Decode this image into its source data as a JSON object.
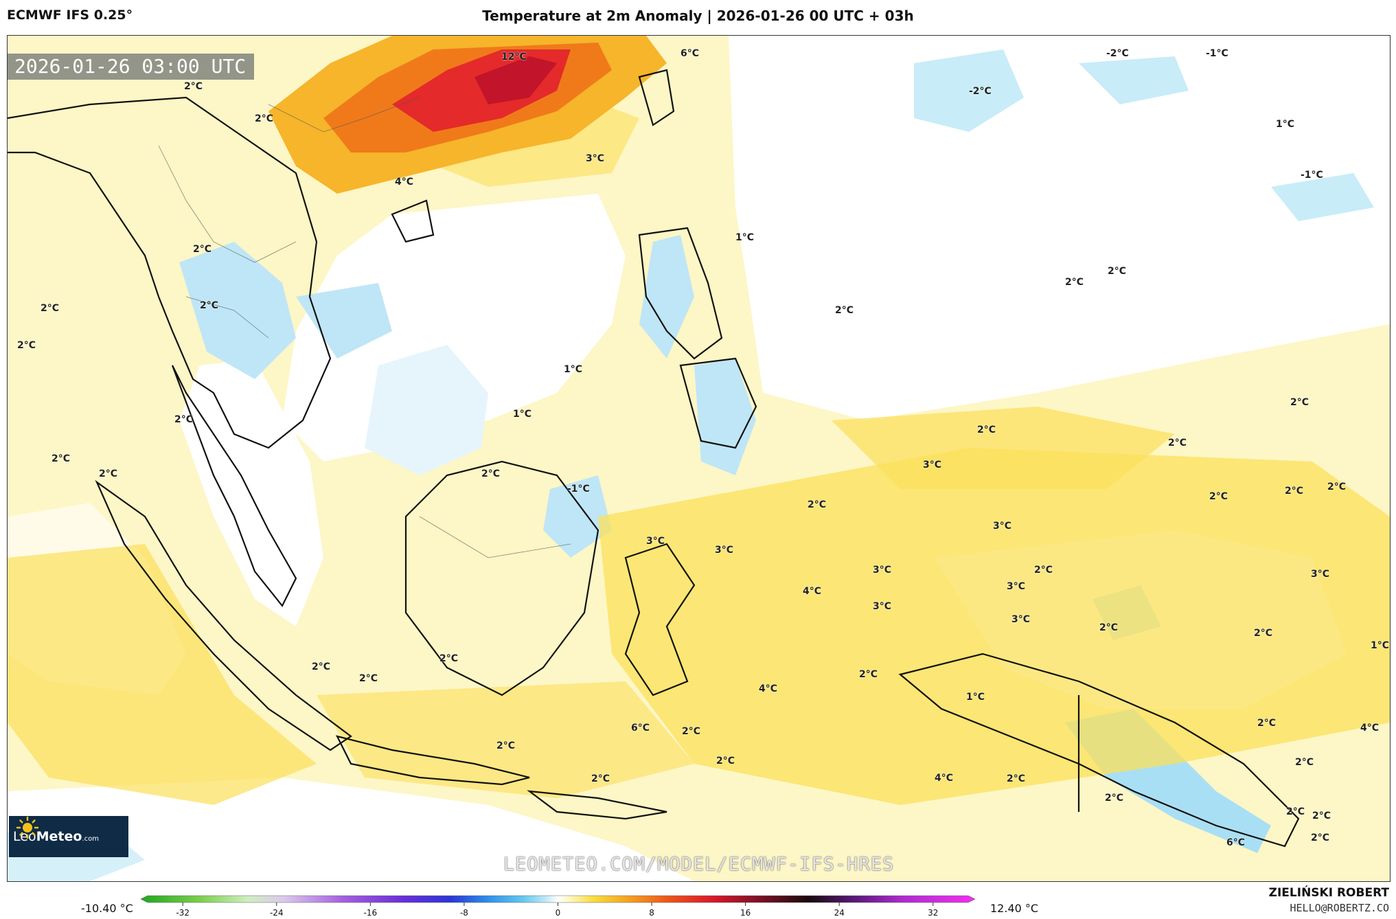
{
  "header": {
    "model": "ECMWF IFS 0.25°",
    "title": "Temperature at 2m Anomaly | 2026-01-26 00 UTC + 03h"
  },
  "map": {
    "timestamp": "2026-01-26 03:00 UTC",
    "watermark": "LEOMETEO.COM/MODEL/ECMWF-IFS-HRES",
    "labels": [
      "2°C",
      "12°C",
      "6°C",
      "-2°C",
      "-1°C",
      "-2°C",
      "1°C",
      "-1°C",
      "2°C",
      "3°C",
      "4°C",
      "1°C",
      "2°C",
      "2°C",
      "2°C",
      "2°C",
      "2°C",
      "2°C",
      "1°C",
      "1°C",
      "2°C",
      "2°C",
      "2°C",
      "2°C",
      "3°C",
      "2°C",
      "-1°C",
      "2°C",
      "3°C",
      "3°C",
      "2°C",
      "3°C",
      "3°C",
      "2°C",
      "3°C",
      "4°C",
      "3°C",
      "3°C",
      "2°C",
      "2°C",
      "2°C",
      "3°C",
      "2°C",
      "2°C",
      "2°C",
      "6°C",
      "1°C",
      "4°C",
      "2°C",
      "2°C",
      "2°C",
      "2°C",
      "2°C",
      "2°C",
      "2°C",
      "2°C",
      "2°C",
      "2°C",
      "4°C",
      "2°C",
      "2°C",
      "6°C",
      "2°C",
      "2°C",
      "2°C",
      "1°C",
      "4°C",
      "2°C"
    ]
  },
  "logo": {
    "brand_light": "Leo",
    "brand_bold": "Meteo",
    "brand_suffix": ".com"
  },
  "colorbar": {
    "min_label": "-10.40 °C",
    "max_label": "12.40 °C",
    "ticks": [
      "-32",
      "-24",
      "-16",
      "-8",
      "0",
      "8",
      "16",
      "24",
      "32"
    ],
    "tick_values": [
      -32,
      -24,
      -16,
      -8,
      0,
      8,
      16,
      24,
      32
    ],
    "range": [
      -35,
      35
    ],
    "stops": [
      {
        "v": -35,
        "c": "#1fa61f"
      },
      {
        "v": -30,
        "c": "#7ccf4d"
      },
      {
        "v": -26,
        "c": "#cfeec0"
      },
      {
        "v": -23,
        "c": "#dcc8ec"
      },
      {
        "v": -18,
        "c": "#a45ee0"
      },
      {
        "v": -13,
        "c": "#6a2ed8"
      },
      {
        "v": -9,
        "c": "#2a36d6"
      },
      {
        "v": -6,
        "c": "#2c8cea"
      },
      {
        "v": -3,
        "c": "#62c6ee"
      },
      {
        "v": -1,
        "c": "#bfe9f7"
      },
      {
        "v": 0,
        "c": "#ffffff"
      },
      {
        "v": 1,
        "c": "#fff6c0"
      },
      {
        "v": 3,
        "c": "#f8dc3c"
      },
      {
        "v": 6,
        "c": "#f5a020"
      },
      {
        "v": 9,
        "c": "#ee5a18"
      },
      {
        "v": 13,
        "c": "#d9172b"
      },
      {
        "v": 17,
        "c": "#7a1022"
      },
      {
        "v": 21,
        "c": "#1a0a0e"
      },
      {
        "v": 25,
        "c": "#5a1a7a"
      },
      {
        "v": 29,
        "c": "#b02ad0"
      },
      {
        "v": 35,
        "c": "#f22ef0"
      }
    ]
  },
  "credit": {
    "author": "ZIELIŃSKI ROBERT",
    "email": "HELLO@ROBERTZ.CO"
  }
}
